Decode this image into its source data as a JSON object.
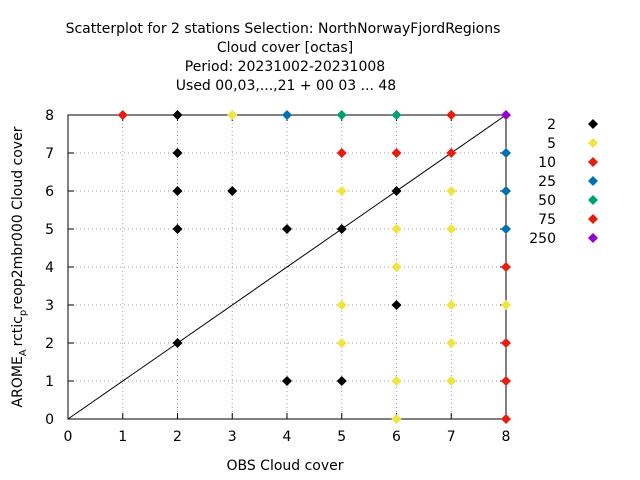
{
  "chart_data": {
    "type": "scatter",
    "title_lines": [
      "Scatterplot for    2 stations Selection: NorthNorwayFjordRegions",
      "Cloud cover [octas]",
      "Period: 20231002-20231008",
      "Used  00,03,...,21  + 00 03 ... 48"
    ],
    "xlabel": "OBS Cloud cover",
    "ylabel_main": "AROME",
    "ylabel_sub": "A",
    "ylabel_mid": "rctic",
    "ylabel_sub2": "p",
    "ylabel_tail": "reop2mbr000 Cloud cover",
    "xlim": [
      0,
      8
    ],
    "ylim": [
      0,
      8
    ],
    "xticks": [
      "0",
      "1",
      "2",
      "3",
      "4",
      "5",
      "6",
      "7",
      "8"
    ],
    "yticks": [
      "0",
      "1",
      "2",
      "3",
      "4",
      "5",
      "6",
      "7",
      "8"
    ],
    "grid": true,
    "diagonal": true,
    "legend_position": "right",
    "series": [
      {
        "name": "2",
        "color": "#000000",
        "points": [
          [
            2,
            8
          ],
          [
            2,
            7
          ],
          [
            2,
            6
          ],
          [
            3,
            6
          ],
          [
            2,
            5
          ],
          [
            4,
            5
          ],
          [
            5,
            5
          ],
          [
            6,
            6
          ],
          [
            2,
            2
          ],
          [
            6,
            3
          ],
          [
            4,
            1
          ],
          [
            5,
            1
          ]
        ]
      },
      {
        "name": "5",
        "color": "#f0e442",
        "points": [
          [
            3,
            8
          ],
          [
            5,
            6
          ],
          [
            7,
            6
          ],
          [
            6,
            5
          ],
          [
            7,
            5
          ],
          [
            6,
            4
          ],
          [
            5,
            3
          ],
          [
            7,
            3
          ],
          [
            8,
            3
          ],
          [
            5,
            2
          ],
          [
            7,
            2
          ],
          [
            6,
            1
          ],
          [
            7,
            1
          ],
          [
            6,
            0
          ]
        ]
      },
      {
        "name": "10",
        "color": "#e51e10",
        "points": [
          [
            5,
            7
          ],
          [
            6,
            7
          ],
          [
            7,
            7
          ],
          [
            8,
            4
          ],
          [
            8,
            2
          ],
          [
            8,
            1
          ],
          [
            8,
            0
          ]
        ]
      },
      {
        "name": "25",
        "color": "#0072b2",
        "points": [
          [
            4,
            8
          ],
          [
            8,
            7
          ],
          [
            8,
            6
          ],
          [
            8,
            5
          ]
        ]
      },
      {
        "name": "50",
        "color": "#009e73",
        "points": [
          [
            5,
            8
          ],
          [
            6,
            8
          ]
        ]
      },
      {
        "name": "75",
        "color": "#e51e10",
        "points": [
          [
            1,
            8
          ],
          [
            7,
            8
          ]
        ]
      },
      {
        "name": "250",
        "color": "#9400d3",
        "points": [
          [
            8,
            8
          ]
        ]
      }
    ]
  }
}
